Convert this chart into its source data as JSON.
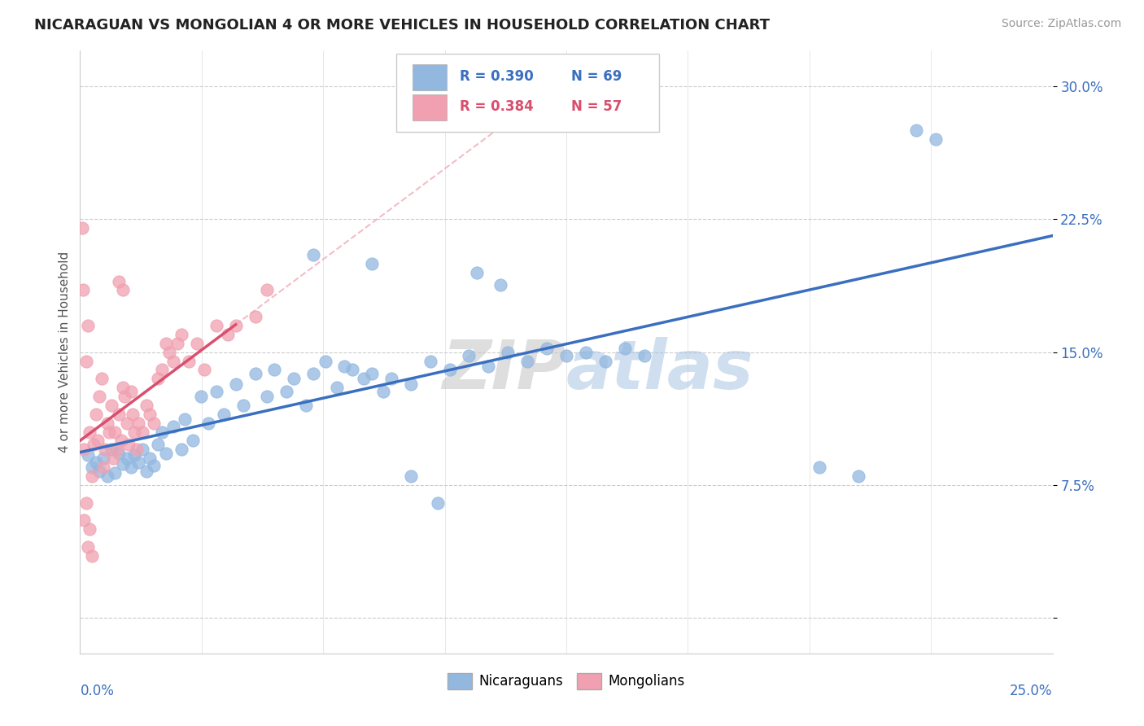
{
  "title": "NICARAGUAN VS MONGOLIAN 4 OR MORE VEHICLES IN HOUSEHOLD CORRELATION CHART",
  "source": "Source: ZipAtlas.com",
  "ylabel": "4 or more Vehicles in Household",
  "watermark_zip": "ZIP",
  "watermark_atlas": "atlas",
  "xlim": [
    0.0,
    25.0
  ],
  "ylim": [
    -2.0,
    32.0
  ],
  "ytick_vals": [
    0.0,
    7.5,
    15.0,
    22.5,
    30.0
  ],
  "ytick_labels": [
    "",
    "7.5%",
    "15.0%",
    "22.5%",
    "30.0%"
  ],
  "blue_color": "#92b8e0",
  "pink_color": "#f0a0b0",
  "blue_line_color": "#3a6fbf",
  "pink_line_color": "#d94f6e",
  "pink_dash_color": "#f0a0b0",
  "legend_blue_text_r": "R = 0.390",
  "legend_blue_text_n": "N = 69",
  "legend_pink_text_r": "R = 0.384",
  "legend_pink_text_n": "N = 57",
  "blue_scatter": [
    [
      0.2,
      9.2
    ],
    [
      0.3,
      8.5
    ],
    [
      0.4,
      8.8
    ],
    [
      0.5,
      8.3
    ],
    [
      0.6,
      9.0
    ],
    [
      0.7,
      8.0
    ],
    [
      0.8,
      9.5
    ],
    [
      0.9,
      8.2
    ],
    [
      1.0,
      9.3
    ],
    [
      1.1,
      8.7
    ],
    [
      1.2,
      9.0
    ],
    [
      1.3,
      8.5
    ],
    [
      1.4,
      9.2
    ],
    [
      1.5,
      8.8
    ],
    [
      1.6,
      9.5
    ],
    [
      1.7,
      8.3
    ],
    [
      1.8,
      9.0
    ],
    [
      1.9,
      8.6
    ],
    [
      2.0,
      9.8
    ],
    [
      2.1,
      10.5
    ],
    [
      2.2,
      9.3
    ],
    [
      2.4,
      10.8
    ],
    [
      2.6,
      9.5
    ],
    [
      2.7,
      11.2
    ],
    [
      2.9,
      10.0
    ],
    [
      3.1,
      12.5
    ],
    [
      3.3,
      11.0
    ],
    [
      3.5,
      12.8
    ],
    [
      3.7,
      11.5
    ],
    [
      4.0,
      13.2
    ],
    [
      4.2,
      12.0
    ],
    [
      4.5,
      13.8
    ],
    [
      4.8,
      12.5
    ],
    [
      5.0,
      14.0
    ],
    [
      5.3,
      12.8
    ],
    [
      5.5,
      13.5
    ],
    [
      5.8,
      12.0
    ],
    [
      6.0,
      13.8
    ],
    [
      6.3,
      14.5
    ],
    [
      6.6,
      13.0
    ],
    [
      6.8,
      14.2
    ],
    [
      7.0,
      14.0
    ],
    [
      7.3,
      13.5
    ],
    [
      7.5,
      13.8
    ],
    [
      7.8,
      12.8
    ],
    [
      8.0,
      13.5
    ],
    [
      8.5,
      13.2
    ],
    [
      9.0,
      14.5
    ],
    [
      9.5,
      14.0
    ],
    [
      10.0,
      14.8
    ],
    [
      10.5,
      14.2
    ],
    [
      11.0,
      15.0
    ],
    [
      11.5,
      14.5
    ],
    [
      12.0,
      15.2
    ],
    [
      12.5,
      14.8
    ],
    [
      13.0,
      15.0
    ],
    [
      13.5,
      14.5
    ],
    [
      14.0,
      15.2
    ],
    [
      14.5,
      14.8
    ],
    [
      10.2,
      19.5
    ],
    [
      10.8,
      18.8
    ],
    [
      20.0,
      8.0
    ],
    [
      21.5,
      27.5
    ],
    [
      22.0,
      27.0
    ],
    [
      19.0,
      8.5
    ],
    [
      6.0,
      20.5
    ],
    [
      7.5,
      20.0
    ],
    [
      8.5,
      8.0
    ],
    [
      9.2,
      6.5
    ]
  ],
  "pink_scatter": [
    [
      0.1,
      9.5
    ],
    [
      0.15,
      14.5
    ],
    [
      0.2,
      16.5
    ],
    [
      0.25,
      10.5
    ],
    [
      0.3,
      8.0
    ],
    [
      0.35,
      9.8
    ],
    [
      0.4,
      11.5
    ],
    [
      0.45,
      10.0
    ],
    [
      0.5,
      12.5
    ],
    [
      0.55,
      13.5
    ],
    [
      0.6,
      8.5
    ],
    [
      0.65,
      9.5
    ],
    [
      0.7,
      11.0
    ],
    [
      0.75,
      10.5
    ],
    [
      0.8,
      12.0
    ],
    [
      0.85,
      9.0
    ],
    [
      0.9,
      10.5
    ],
    [
      0.95,
      9.5
    ],
    [
      1.0,
      11.5
    ],
    [
      1.05,
      10.0
    ],
    [
      1.1,
      13.0
    ],
    [
      1.15,
      12.5
    ],
    [
      1.2,
      11.0
    ],
    [
      1.25,
      9.8
    ],
    [
      1.3,
      12.8
    ],
    [
      1.35,
      11.5
    ],
    [
      1.4,
      10.5
    ],
    [
      1.45,
      9.5
    ],
    [
      1.5,
      11.0
    ],
    [
      1.6,
      10.5
    ],
    [
      1.7,
      12.0
    ],
    [
      1.8,
      11.5
    ],
    [
      1.9,
      11.0
    ],
    [
      2.0,
      13.5
    ],
    [
      2.1,
      14.0
    ],
    [
      2.2,
      15.5
    ],
    [
      2.3,
      15.0
    ],
    [
      2.4,
      14.5
    ],
    [
      2.5,
      15.5
    ],
    [
      2.6,
      16.0
    ],
    [
      2.8,
      14.5
    ],
    [
      3.0,
      15.5
    ],
    [
      3.2,
      14.0
    ],
    [
      1.0,
      19.0
    ],
    [
      1.1,
      18.5
    ],
    [
      0.1,
      5.5
    ],
    [
      0.2,
      4.0
    ],
    [
      0.3,
      3.5
    ],
    [
      0.15,
      6.5
    ],
    [
      0.25,
      5.0
    ],
    [
      3.5,
      16.5
    ],
    [
      3.8,
      16.0
    ],
    [
      4.0,
      16.5
    ],
    [
      4.5,
      17.0
    ],
    [
      4.8,
      18.5
    ],
    [
      0.05,
      22.0
    ],
    [
      0.08,
      18.5
    ]
  ],
  "bg_color": "#ffffff",
  "grid_color": "#cccccc",
  "grid_style": "--"
}
